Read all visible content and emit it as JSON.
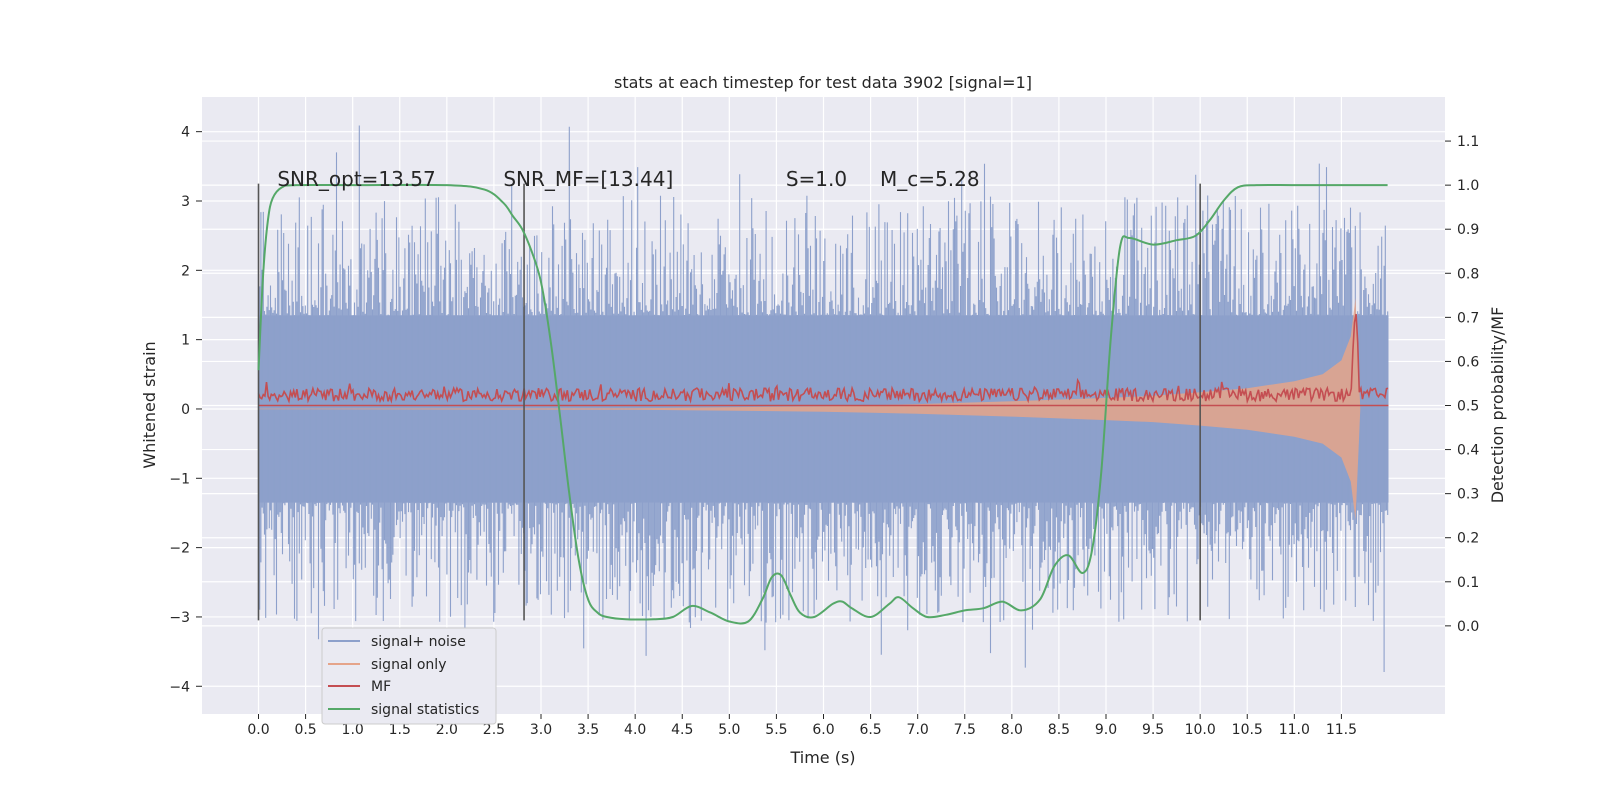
{
  "chart_data": {
    "type": "line",
    "title": "stats at each timestep for test data 3902 [signal=1]",
    "xlabel": "Time (s)",
    "ylabel_left": "Whitened strain",
    "ylabel_right": "Detection probability/MF",
    "xlim": [
      -0.6,
      12.6
    ],
    "ylim_left": [
      -4.4,
      4.5
    ],
    "ylim_right": [
      -0.2,
      1.2
    ],
    "x_ticks": [
      0.0,
      0.5,
      1.0,
      1.5,
      2.0,
      2.5,
      3.0,
      3.5,
      4.0,
      4.5,
      5.0,
      5.5,
      6.0,
      6.5,
      7.0,
      7.5,
      8.0,
      8.5,
      9.0,
      9.5,
      10.0,
      10.5,
      11.0,
      11.5
    ],
    "x_tick_labels": [
      "0.0",
      "0.5",
      "1.0",
      "1.5",
      "2.0",
      "2.5",
      "3.0",
      "3.5",
      "4.0",
      "4.5",
      "5.0",
      "5.5",
      "6.0",
      "6.5",
      "7.0",
      "7.5",
      "8.0",
      "8.5",
      "9.0",
      "9.5",
      "10.0",
      "10.5",
      "11.0",
      "11.5"
    ],
    "y_left_ticks": [
      -4,
      -3,
      -2,
      -1,
      0,
      1,
      2,
      3,
      4
    ],
    "y_left_tick_labels": [
      "−4",
      "−3",
      "−2",
      "−1",
      "0",
      "1",
      "2",
      "3",
      "4"
    ],
    "y_right_ticks": [
      0.0,
      0.1,
      0.2,
      0.3,
      0.4,
      0.5,
      0.6,
      0.7,
      0.8,
      0.9,
      1.0,
      1.1
    ],
    "y_right_tick_labels": [
      "0.0",
      "0.1",
      "0.2",
      "0.3",
      "0.4",
      "0.5",
      "0.6",
      "0.7",
      "0.8",
      "0.9",
      "1.0",
      "1.1"
    ],
    "grid": true,
    "legend_position": "lower-left",
    "annotations": [
      {
        "text": "SNR_opt=13.57",
        "x": 0.2,
        "y": 3.3
      },
      {
        "text": "SNR_MF=[13.44]",
        "x": 2.6,
        "y": 3.3
      },
      {
        "text": "S=1.0",
        "x": 5.6,
        "y": 3.3
      },
      {
        "text": "M_c=5.28",
        "x": 6.6,
        "y": 3.3
      }
    ],
    "vertical_markers": [
      {
        "x": 0.0,
        "y_range": [
          -3.05,
          3.25
        ]
      },
      {
        "x": 2.82,
        "y_range": [
          -3.05,
          3.25
        ]
      },
      {
        "x": 10.0,
        "y_range": [
          -3.05,
          3.25
        ]
      }
    ],
    "series": [
      {
        "name": "signal+ noise",
        "axis": "left",
        "color": "#8da0cb",
        "kind": "noise",
        "x_range": [
          0.0,
          12.0
        ],
        "band": 1.35,
        "envelope_max": 4.1,
        "envelope_min": -3.9
      },
      {
        "name": "signal only",
        "axis": "left",
        "color": "#e5a48a",
        "kind": "chirp",
        "x": [
          0.0,
          4.0,
          6.0,
          7.0,
          8.0,
          9.0,
          9.5,
          10.0,
          10.5,
          11.0,
          11.3,
          11.5,
          11.6,
          11.65,
          11.7
        ],
        "amplitude": [
          0.005,
          0.01,
          0.04,
          0.07,
          0.11,
          0.16,
          0.19,
          0.24,
          0.3,
          0.4,
          0.5,
          0.7,
          1.05,
          1.6,
          0.0
        ]
      },
      {
        "name": "MF",
        "axis": "right",
        "color": "#c44e52",
        "kind": "mf",
        "x_range": [
          0.0,
          12.0
        ],
        "baseline": 0.52,
        "spike_x": 11.65,
        "spike_y": 0.73
      },
      {
        "name": "signal statistics",
        "axis": "right",
        "color": "#55a868",
        "x": [
          0.0,
          0.05,
          0.1,
          0.15,
          0.25,
          0.4,
          1.0,
          2.0,
          2.4,
          2.6,
          2.7,
          2.8,
          2.9,
          3.0,
          3.1,
          3.2,
          3.3,
          3.4,
          3.5,
          3.6,
          3.7,
          3.9,
          4.2,
          4.4,
          4.6,
          4.8,
          5.0,
          5.2,
          5.35,
          5.45,
          5.55,
          5.65,
          5.75,
          5.9,
          6.1,
          6.2,
          6.3,
          6.5,
          6.7,
          6.8,
          6.95,
          7.1,
          7.3,
          7.5,
          7.7,
          7.9,
          8.1,
          8.3,
          8.45,
          8.6,
          8.75,
          8.85,
          8.95,
          9.05,
          9.15,
          9.25,
          9.5,
          9.75,
          9.95,
          10.1,
          10.25,
          10.4,
          10.6,
          11.0,
          11.5,
          11.99
        ],
        "y": [
          0.58,
          0.8,
          0.92,
          0.97,
          0.995,
          1.0,
          1.0,
          1.0,
          0.99,
          0.96,
          0.93,
          0.9,
          0.85,
          0.78,
          0.65,
          0.48,
          0.3,
          0.15,
          0.06,
          0.03,
          0.02,
          0.015,
          0.015,
          0.02,
          0.045,
          0.03,
          0.01,
          0.01,
          0.06,
          0.11,
          0.115,
          0.07,
          0.03,
          0.02,
          0.05,
          0.055,
          0.04,
          0.02,
          0.05,
          0.065,
          0.04,
          0.02,
          0.025,
          0.035,
          0.04,
          0.055,
          0.035,
          0.06,
          0.135,
          0.16,
          0.12,
          0.17,
          0.35,
          0.65,
          0.86,
          0.88,
          0.865,
          0.875,
          0.885,
          0.92,
          0.965,
          0.995,
          1.0,
          1.0,
          1.0,
          1.0
        ]
      }
    ]
  }
}
